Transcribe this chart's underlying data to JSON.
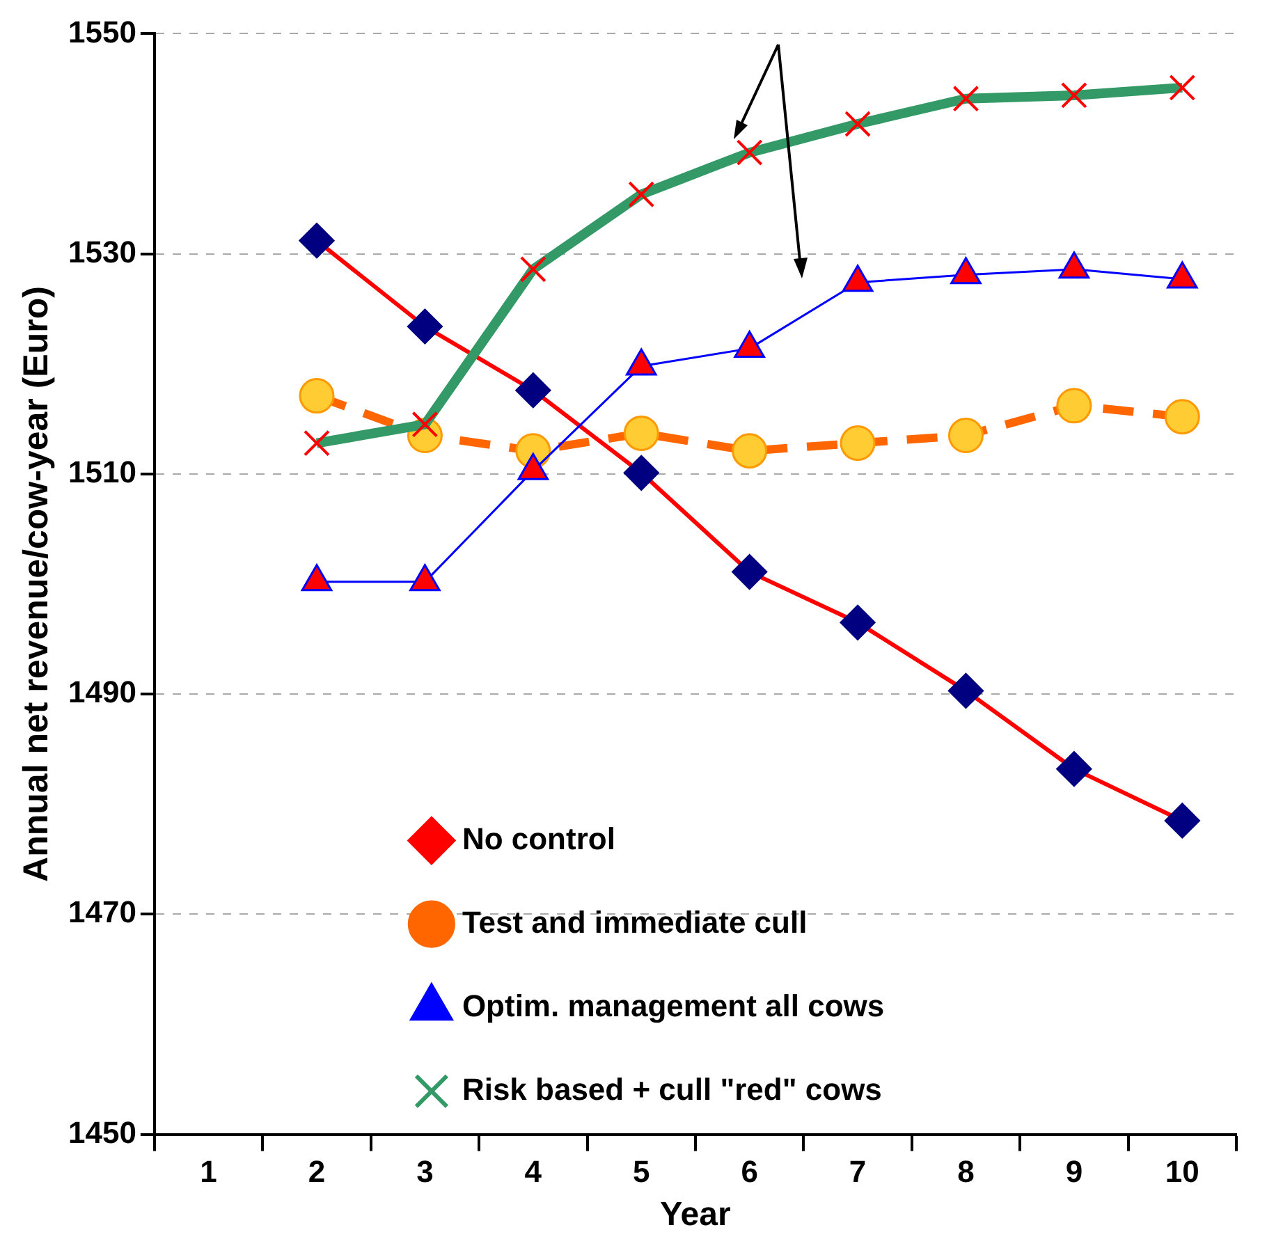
{
  "chart_data": {
    "type": "line",
    "xlabel": "Year",
    "ylabel": "Annual net revenue/cow-year (Euro)",
    "categories": [
      "1",
      "2",
      "3",
      "4",
      "5",
      "6",
      "7",
      "8",
      "9",
      "10"
    ],
    "ylim": [
      1450,
      1550
    ],
    "yticks": [
      1450,
      1470,
      1490,
      1510,
      1530,
      1550
    ],
    "grid": "y",
    "legend": "bottom right",
    "series": [
      {
        "name": "No control",
        "color": "#ff0000",
        "marker": "diamond",
        "line_style": "solid",
        "values": [
          null,
          1531.2,
          1523.4,
          1517.6,
          1510.1,
          1501.1,
          1496.5,
          1490.3,
          1483.2,
          1478.5
        ]
      },
      {
        "name": "Test and immediate cull",
        "color": "#ff6600",
        "marker": "circle",
        "line_style": "dashed",
        "values": [
          null,
          1517.1,
          1513.5,
          1512.1,
          1513.7,
          1512.1,
          1512.8,
          1513.5,
          1516.2,
          1515.2
        ]
      },
      {
        "name": "Optim. management all cows",
        "color": "#0000ff",
        "marker": "triangle",
        "line_style": "solid",
        "values": [
          null,
          1500.2,
          1500.2,
          1510.3,
          1519.8,
          1521.4,
          1527.4,
          1528.1,
          1528.6,
          1527.7
        ]
      },
      {
        "name": "Risk based + cull \"red\" cows",
        "color": "#339966",
        "marker": "cross",
        "line_style": "solid",
        "values": [
          null,
          1512.8,
          1514.5,
          1528.6,
          1535.4,
          1539.2,
          1541.8,
          1544.1,
          1544.4,
          1545.1
        ]
      }
    ]
  }
}
